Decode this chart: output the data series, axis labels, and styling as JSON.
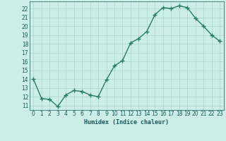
{
  "hours": [
    0,
    1,
    2,
    3,
    4,
    5,
    6,
    7,
    8,
    9,
    10,
    11,
    12,
    13,
    14,
    15,
    16,
    17,
    18,
    19,
    20,
    21,
    22,
    23
  ],
  "values": [
    14,
    11.8,
    11.7,
    10.9,
    12.2,
    12.7,
    12.6,
    12.2,
    12.0,
    13.9,
    15.5,
    16.1,
    18.1,
    18.6,
    19.4,
    21.3,
    22.1,
    22.0,
    22.3,
    22.1,
    20.9,
    20.0,
    19.0,
    18.3
  ],
  "xlabel": "Humidex (Indice chaleur)",
  "ylim": [
    10.5,
    22.8
  ],
  "xlim": [
    -0.5,
    23.5
  ],
  "yticks": [
    11,
    12,
    13,
    14,
    15,
    16,
    17,
    18,
    19,
    20,
    21,
    22
  ],
  "xticks": [
    0,
    1,
    2,
    3,
    4,
    5,
    6,
    7,
    8,
    9,
    10,
    11,
    12,
    13,
    14,
    15,
    16,
    17,
    18,
    19,
    20,
    21,
    22,
    23
  ],
  "line_color": "#2a7a6a",
  "bg_color": "#cceee8",
  "grid_color": "#aad4cc",
  "tick_label_color": "#1a5a5a",
  "line_width": 1.0,
  "marker_size": 4,
  "tick_fontsize": 5.5,
  "xlabel_fontsize": 6.0
}
